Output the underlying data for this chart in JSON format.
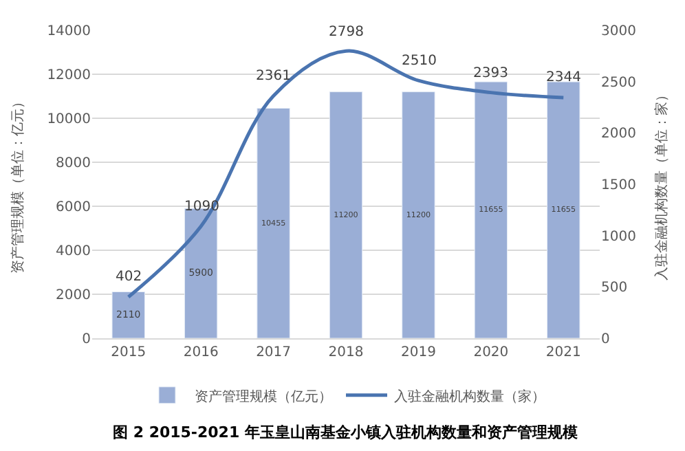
{
  "chart_data": {
    "type": "bar",
    "categories": [
      "2015",
      "2016",
      "2017",
      "2018",
      "2019",
      "2020",
      "2021"
    ],
    "series": [
      {
        "name": "资产管理规模（亿元）",
        "color": "#9aaed6",
        "values": [
          2110,
          5900,
          10455,
          11200,
          11200,
          11655,
          11655
        ]
      },
      {
        "name": "入驻金融机构数量（家）",
        "type": "line",
        "axis": "y2",
        "color": "#4a74b0",
        "values": [
          402,
          1090,
          2361,
          2798,
          2510,
          2393,
          2344
        ]
      }
    ],
    "ylabel": "资产管理规模（单位：亿元）",
    "y2label": "入驻金融机构数量（单位：家）",
    "ylim": [
      0,
      14000
    ],
    "yticks": [
      0,
      2000,
      4000,
      6000,
      8000,
      10000,
      12000,
      14000
    ],
    "y2lim": [
      0,
      3000
    ],
    "y2ticks": [
      0,
      500,
      1000,
      1500,
      2000,
      2500,
      3000
    ],
    "grid": "y",
    "legend": "bottom",
    "data_labels": true,
    "marker": "none",
    "line_style": "solid",
    "annotations": [
      "图 2 2015-2021 年玉皇山南基金小镇入驻机构数量和资产管理规模"
    ]
  }
}
